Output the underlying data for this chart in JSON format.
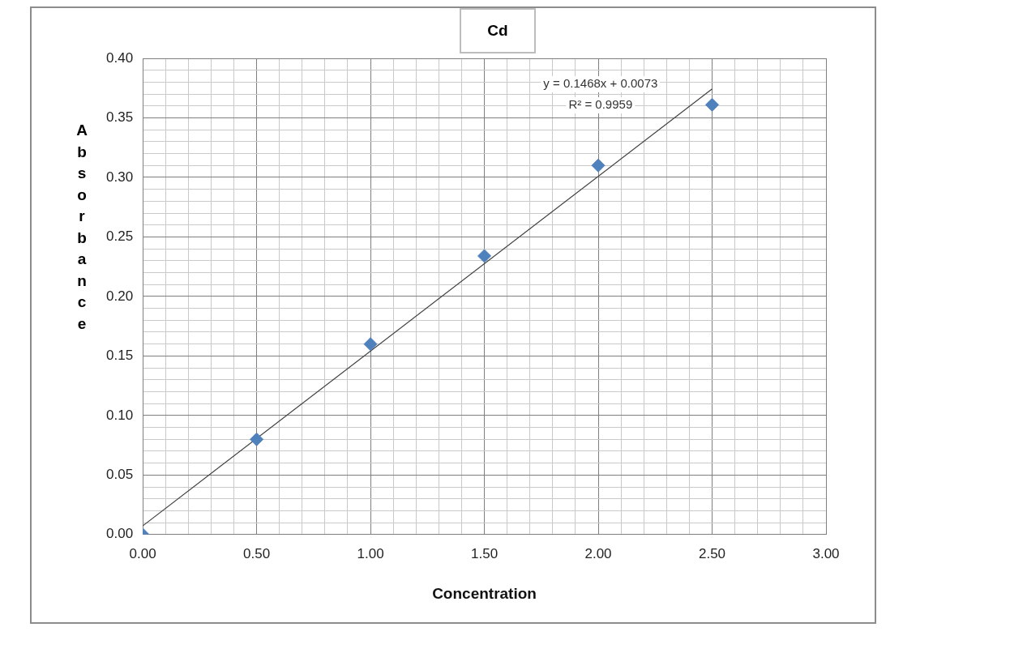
{
  "chart_data": {
    "type": "scatter",
    "title": "Cd",
    "xlabel": "Concentration",
    "ylabel": "Absorbance",
    "series": [
      {
        "type": "scatter",
        "color": "#4f81bd",
        "marker": "diamond",
        "x": [
          0,
          0.5,
          1.0,
          1.5,
          2.0,
          2.5
        ],
        "values": [
          0.0,
          0.08,
          0.16,
          0.234,
          0.31,
          0.361
        ]
      },
      {
        "type": "line",
        "color": "#404040",
        "marker": "none",
        "line_style": "solid",
        "x": [
          0,
          2.5
        ],
        "values": [
          0.0073,
          0.3743
        ]
      }
    ],
    "annotations": [
      "y = 0.1468x + 0.0073",
      "R² = 0.9959"
    ],
    "xlim": [
      0,
      3
    ],
    "ylim": [
      0,
      0.4
    ],
    "xticks": [
      {
        "value": 0,
        "label": "0.00"
      },
      {
        "value": 0.1,
        "label": null
      },
      {
        "value": 0.2,
        "label": null
      },
      {
        "value": 0.3,
        "label": null
      },
      {
        "value": 0.4,
        "label": null
      },
      {
        "value": 0.5,
        "label": "0.50"
      },
      {
        "value": 0.6,
        "label": null
      },
      {
        "value": 0.7,
        "label": null
      },
      {
        "value": 0.8,
        "label": null
      },
      {
        "value": 0.9,
        "label": null
      },
      {
        "value": 1.0,
        "label": "1.00"
      },
      {
        "value": 1.1,
        "label": null
      },
      {
        "value": 1.2,
        "label": null
      },
      {
        "value": 1.3,
        "label": null
      },
      {
        "value": 1.4,
        "label": null
      },
      {
        "value": 1.5,
        "label": "1.50"
      },
      {
        "value": 1.6,
        "label": null
      },
      {
        "value": 1.7,
        "label": null
      },
      {
        "value": 1.8,
        "label": null
      },
      {
        "value": 1.9,
        "label": null
      },
      {
        "value": 2.0,
        "label": "2.00"
      },
      {
        "value": 2.1,
        "label": null
      },
      {
        "value": 2.2,
        "label": null
      },
      {
        "value": 2.3,
        "label": null
      },
      {
        "value": 2.4,
        "label": null
      },
      {
        "value": 2.5,
        "label": "2.50"
      },
      {
        "value": 2.6,
        "label": null
      },
      {
        "value": 2.7,
        "label": null
      },
      {
        "value": 2.8,
        "label": null
      },
      {
        "value": 2.9,
        "label": null
      },
      {
        "value": 3.0,
        "label": "3.00"
      }
    ],
    "yticks": [
      {
        "value": 0,
        "label": "0.00"
      },
      {
        "value": 0.01,
        "label": null
      },
      {
        "value": 0.02,
        "label": null
      },
      {
        "value": 0.03,
        "label": null
      },
      {
        "value": 0.04,
        "label": null
      },
      {
        "value": 0.05,
        "label": "0.05"
      },
      {
        "value": 0.06,
        "label": null
      },
      {
        "value": 0.07,
        "label": null
      },
      {
        "value": 0.08,
        "label": null
      },
      {
        "value": 0.09,
        "label": null
      },
      {
        "value": 0.1,
        "label": "0.10"
      },
      {
        "value": 0.11,
        "label": null
      },
      {
        "value": 0.12,
        "label": null
      },
      {
        "value": 0.13,
        "label": null
      },
      {
        "value": 0.14,
        "label": null
      },
      {
        "value": 0.15,
        "label": "0.15"
      },
      {
        "value": 0.16,
        "label": null
      },
      {
        "value": 0.17,
        "label": null
      },
      {
        "value": 0.18,
        "label": null
      },
      {
        "value": 0.19,
        "label": null
      },
      {
        "value": 0.2,
        "label": "0.20"
      },
      {
        "value": 0.21,
        "label": null
      },
      {
        "value": 0.22,
        "label": null
      },
      {
        "value": 0.23,
        "label": null
      },
      {
        "value": 0.24,
        "label": null
      },
      {
        "value": 0.25,
        "label": "0.25"
      },
      {
        "value": 0.26,
        "label": null
      },
      {
        "value": 0.27,
        "label": null
      },
      {
        "value": 0.28,
        "label": null
      },
      {
        "value": 0.29,
        "label": null
      },
      {
        "value": 0.3,
        "label": "0.30"
      },
      {
        "value": 0.31,
        "label": null
      },
      {
        "value": 0.32,
        "label": null
      },
      {
        "value": 0.33,
        "label": null
      },
      {
        "value": 0.34,
        "label": null
      },
      {
        "value": 0.35,
        "label": "0.35"
      },
      {
        "value": 0.36,
        "label": null
      },
      {
        "value": 0.37,
        "label": null
      },
      {
        "value": 0.38,
        "label": null
      },
      {
        "value": 0.39,
        "label": null
      },
      {
        "value": 0.4,
        "label": "0.40"
      }
    ],
    "grid": true,
    "legend": false
  }
}
